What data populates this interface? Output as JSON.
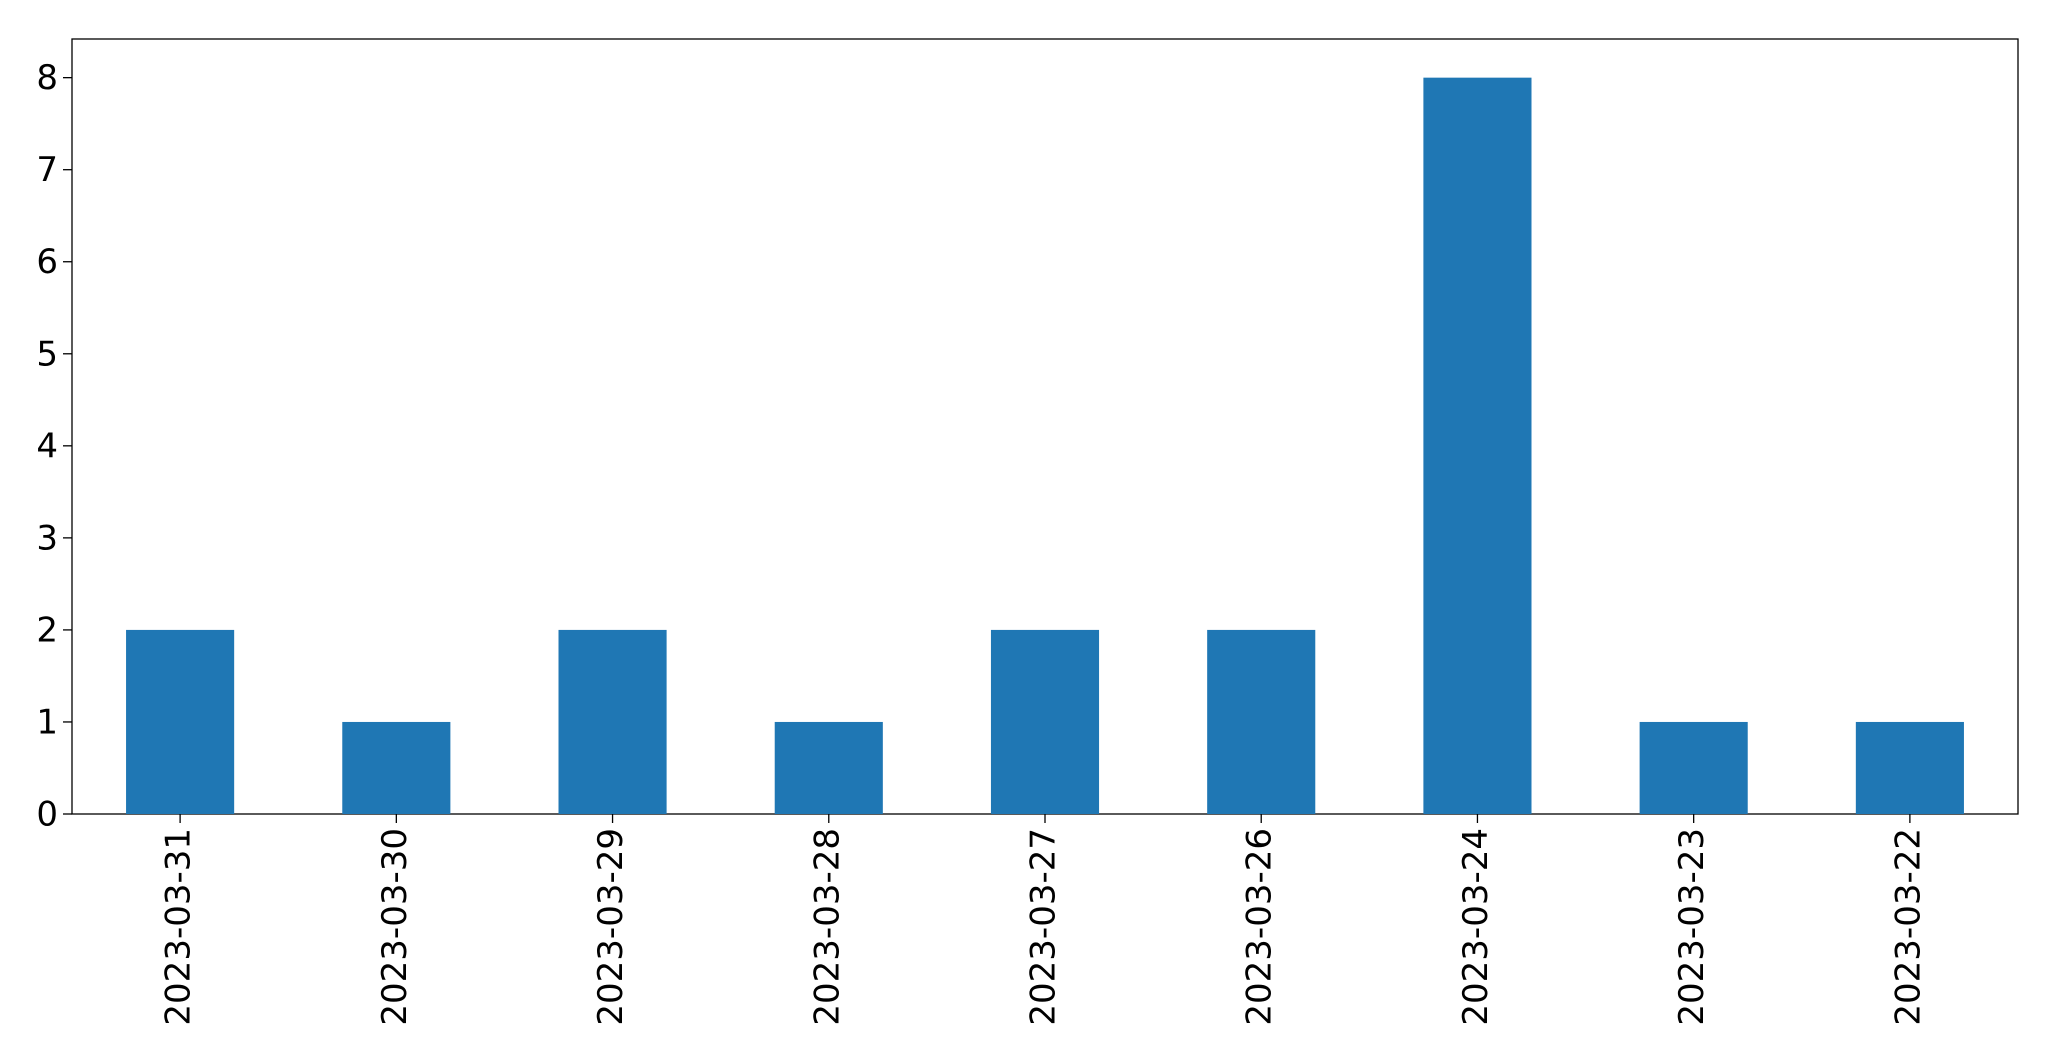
{
  "chart_data": {
    "type": "bar",
    "categories": [
      "2023-03-31",
      "2023-03-30",
      "2023-03-29",
      "2023-03-28",
      "2023-03-27",
      "2023-03-26",
      "2023-03-24",
      "2023-03-23",
      "2023-03-22"
    ],
    "values": [
      2,
      1,
      2,
      1,
      2,
      2,
      8,
      1,
      1
    ],
    "color": "#1f77b4",
    "ylim": [
      0,
      8.42
    ],
    "yticks": [
      0,
      1,
      2,
      3,
      4,
      5,
      6,
      7,
      8
    ],
    "grid": false
  }
}
